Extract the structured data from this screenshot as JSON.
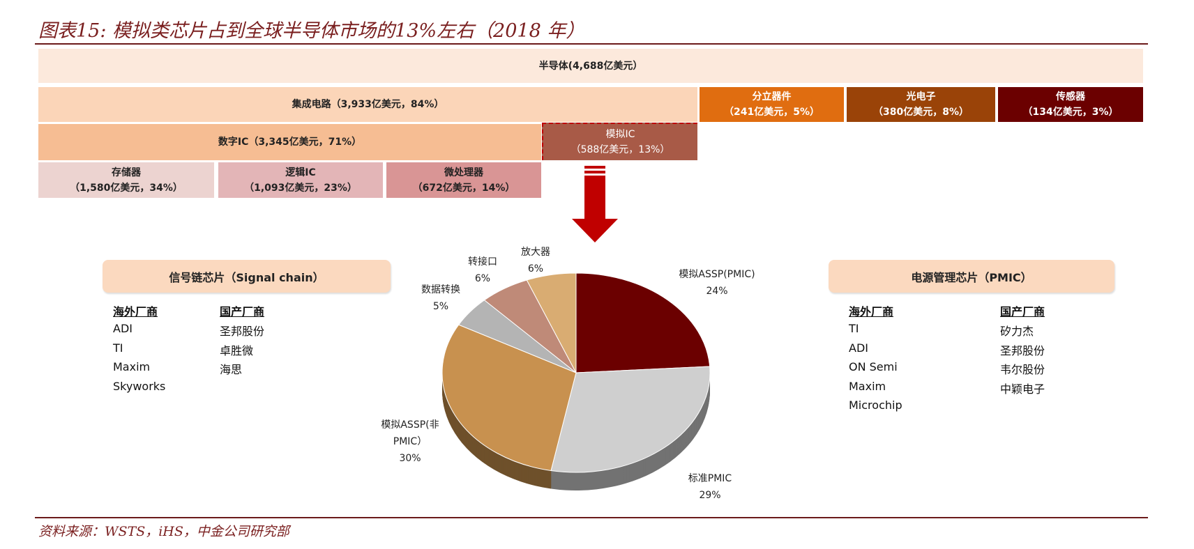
{
  "title": "图表15: 模拟类芯片占到全球半导体市场的13%左右（2018 年）",
  "source": "资料来源：WSTS，iHS，中金公司研究部",
  "blocks": {
    "semi": {
      "l1": "半导体(4,688亿美元）"
    },
    "ic": {
      "l1": "集成电路（3,933亿美元，84%）"
    },
    "discrete": {
      "l1": "分立器件",
      "l2": "（241亿美元，5%）"
    },
    "opto": {
      "l1": "光电子",
      "l2": "（380亿美元，8%）"
    },
    "sensor": {
      "l1": "传感器",
      "l2": "（134亿美元，3%）"
    },
    "digital": {
      "l1": "数字IC（3,345亿美元，71%）"
    },
    "analog": {
      "l1": "模拟IC",
      "l2": "（588亿美元，13%）"
    },
    "memory": {
      "l1": "存储器",
      "l2": "（1,580亿美元，34%）"
    },
    "logic": {
      "l1": "逻辑IC",
      "l2": "（1,093亿美元，23%）"
    },
    "micro": {
      "l1": "微处理器",
      "l2": "（672亿美元，14%）"
    }
  },
  "colors": {
    "semi": "#fce9dc",
    "ic": "#fbd5b8",
    "discrete": "#e06d10",
    "opto": "#9a4308",
    "sensor": "#6b0000",
    "digital": "#f6bd93",
    "analog": "#a85a47",
    "memory": "#ecd3d0",
    "logic": "#e3b5b7",
    "micro": "#d99595",
    "arrow": "#c00000"
  },
  "signal": {
    "header": "信号链芯片（Signal chain）",
    "overseas_label": "海外厂商",
    "domestic_label": "国产厂商",
    "overseas": [
      "ADI",
      "TI",
      "Maxim",
      "Skyworks"
    ],
    "domestic": [
      "圣邦股份",
      "卓胜微",
      "海思"
    ]
  },
  "pmic": {
    "header": "电源管理芯片（PMIC）",
    "overseas_label": "海外厂商",
    "domestic_label": "国产厂商",
    "overseas": [
      "TI",
      "ADI",
      "ON Semi",
      "Maxim",
      "Microchip"
    ],
    "domestic": [
      "矽力杰",
      "圣邦股份",
      "韦尔股份",
      "中颖电子"
    ]
  },
  "chart_data": {
    "type": "pie",
    "title": "",
    "slices": [
      {
        "label": "模拟ASSP(PMIC)",
        "value": 24,
        "pct": "24%",
        "color": "#6b0000"
      },
      {
        "label": "标准PMIC",
        "value": 29,
        "pct": "29%",
        "color": "#cfcfcf"
      },
      {
        "label": "模拟ASSP(非PMIC）",
        "value": 30,
        "pct": "30%",
        "color": "#c8914f"
      },
      {
        "label": "数据转换",
        "value": 5,
        "pct": "5%",
        "color": "#b4b4b4"
      },
      {
        "label": "转接口",
        "value": 6,
        "pct": "6%",
        "color": "#bf8a78"
      },
      {
        "label": "放大器",
        "value": 6,
        "pct": "6%",
        "color": "#d9ac72"
      }
    ]
  }
}
